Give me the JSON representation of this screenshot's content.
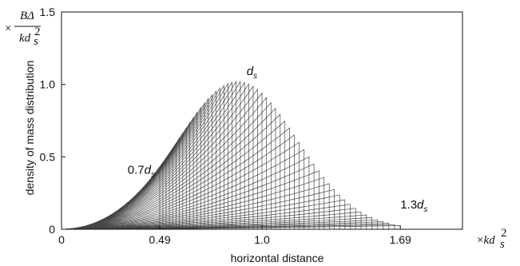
{
  "chart_data": {
    "type": "line",
    "xlabel": "horizontal distance",
    "ylabel": "density of mass distribution",
    "x_multiplier": {
      "prefix": "×",
      "var": "kd",
      "sub": "s",
      "sup": "2"
    },
    "y_multiplier": {
      "prefix": "×",
      "num": "BΔ",
      "den_var": "kd",
      "den_sub": "s",
      "den_sup": "2"
    },
    "xlim": [
      0,
      2.0
    ],
    "ylim": [
      0,
      1.5
    ],
    "x_ticks": [
      0,
      0.49,
      1.0,
      1.69
    ],
    "x_tick_labels": [
      "0",
      "0.49",
      "1.0",
      "1.69"
    ],
    "y_ticks": [
      0,
      0.5,
      1.0,
      1.5
    ],
    "y_tick_labels": [
      "0",
      "0.5",
      "1.0",
      "1.5"
    ],
    "grid": false,
    "curve_family": {
      "description_of_d": "trajectory cutoff d from 0.7 d_s to 1.3 d_s",
      "d_min": 0.7,
      "d_max": 1.3,
      "count": 55,
      "cutoff_x_values_are_d_squared": true,
      "peak": {
        "d": 1.0,
        "x": 0.88,
        "y": 1.02
      }
    },
    "annotations": [
      {
        "label_pre": "0.7",
        "var": "d",
        "sub": "s",
        "x": 0.49,
        "y": 0.36
      },
      {
        "label_pre": "",
        "var": "d",
        "sub": "s",
        "x": 0.95,
        "y": 1.02
      },
      {
        "label_pre": "1.3",
        "var": "d",
        "sub": "s",
        "x": 1.69,
        "y": 0.1
      }
    ]
  }
}
